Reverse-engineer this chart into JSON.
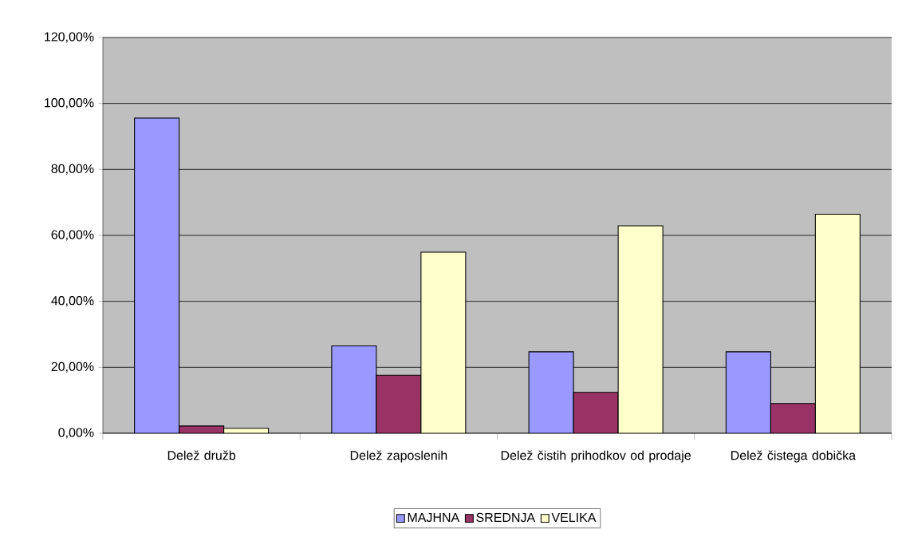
{
  "chart_data": {
    "type": "bar",
    "categories": [
      "Delež družb",
      "Delež zaposlenih",
      "Delež čistih prihodkov od prodaje",
      "Delež čistega dobička"
    ],
    "series": [
      {
        "name": "MAJHNA",
        "color": "#9999ff",
        "values": [
          95.6,
          26.5,
          24.7,
          24.7
        ]
      },
      {
        "name": "SREDNJA",
        "color": "#993366",
        "values": [
          2.2,
          17.6,
          12.4,
          9.0
        ]
      },
      {
        "name": "VELIKA",
        "color": "#ffffcc",
        "values": [
          1.5,
          54.9,
          62.9,
          66.4
        ]
      }
    ],
    "ylim": [
      0,
      120
    ],
    "yticks": [
      {
        "value": 0,
        "label": "0,00%"
      },
      {
        "value": 20,
        "label": "20,00%"
      },
      {
        "value": 40,
        "label": "40,00%"
      },
      {
        "value": 60,
        "label": "60,00%"
      },
      {
        "value": 80,
        "label": "80,00%"
      },
      {
        "value": 100,
        "label": "100,00%"
      },
      {
        "value": 120,
        "label": "120,00%"
      }
    ],
    "grid": "y",
    "legend": "bottom"
  }
}
